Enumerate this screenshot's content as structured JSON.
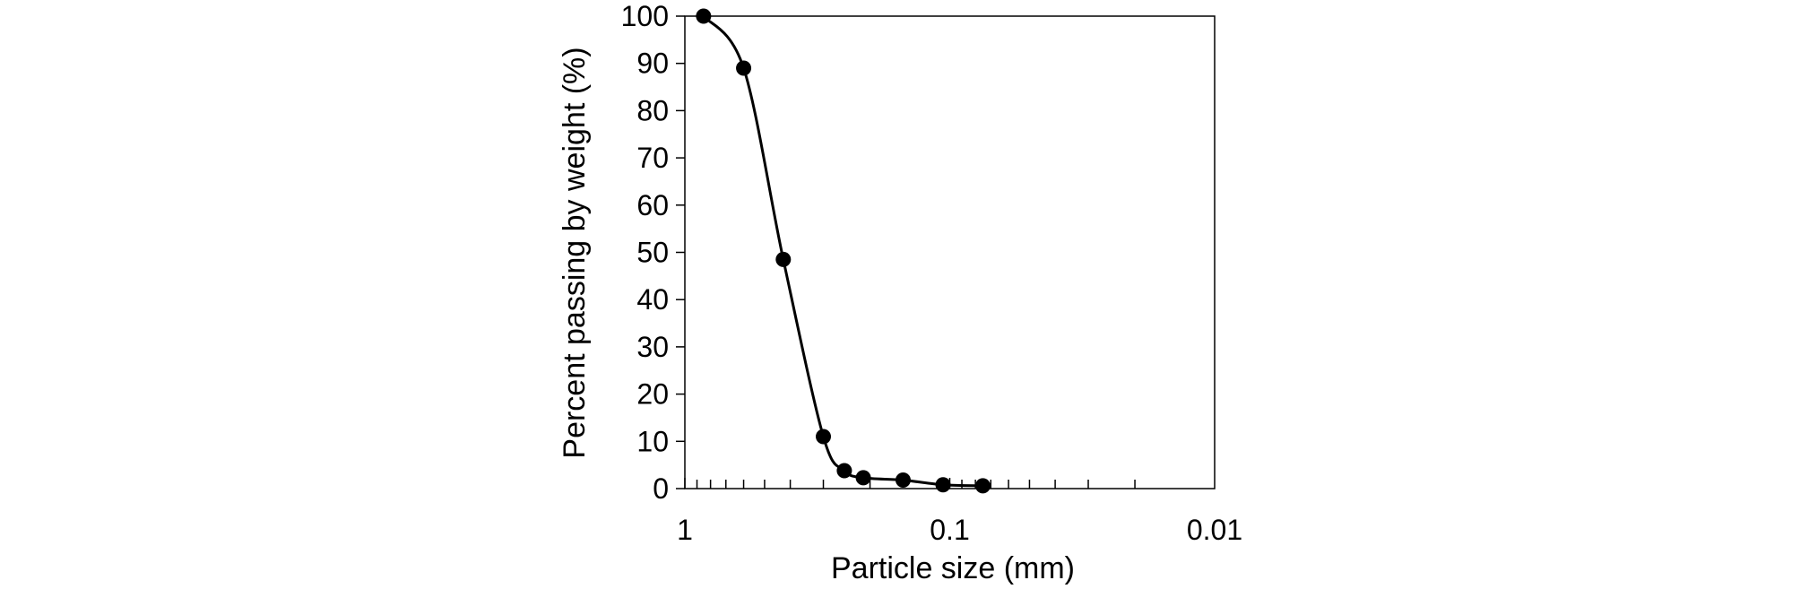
{
  "chart_data": {
    "type": "scatter",
    "xlabel": "Particle size (mm)",
    "ylabel": "Percent passing by weight (%)",
    "x_scale": "log",
    "x_reversed": true,
    "xlim": [
      1,
      0.01
    ],
    "ylim": [
      0,
      100
    ],
    "x_tick_labels": [
      "1",
      "0.1",
      "0.01"
    ],
    "y_tick_labels": [
      "0",
      "10",
      "20",
      "30",
      "40",
      "50",
      "60",
      "70",
      "80",
      "90",
      "100"
    ],
    "grid": false,
    "legend": "none",
    "series": [
      {
        "color": "#000000",
        "marker": "filled-circle",
        "line": "smooth",
        "points": [
          {
            "x": 0.85,
            "y": 100
          },
          {
            "x": 0.6,
            "y": 89
          },
          {
            "x": 0.425,
            "y": 48.5
          },
          {
            "x": 0.3,
            "y": 11
          },
          {
            "x": 0.25,
            "y": 3.8
          },
          {
            "x": 0.212,
            "y": 2.3
          },
          {
            "x": 0.15,
            "y": 1.8
          },
          {
            "x": 0.106,
            "y": 0.8
          },
          {
            "x": 0.075,
            "y": 0.6
          }
        ]
      }
    ]
  }
}
